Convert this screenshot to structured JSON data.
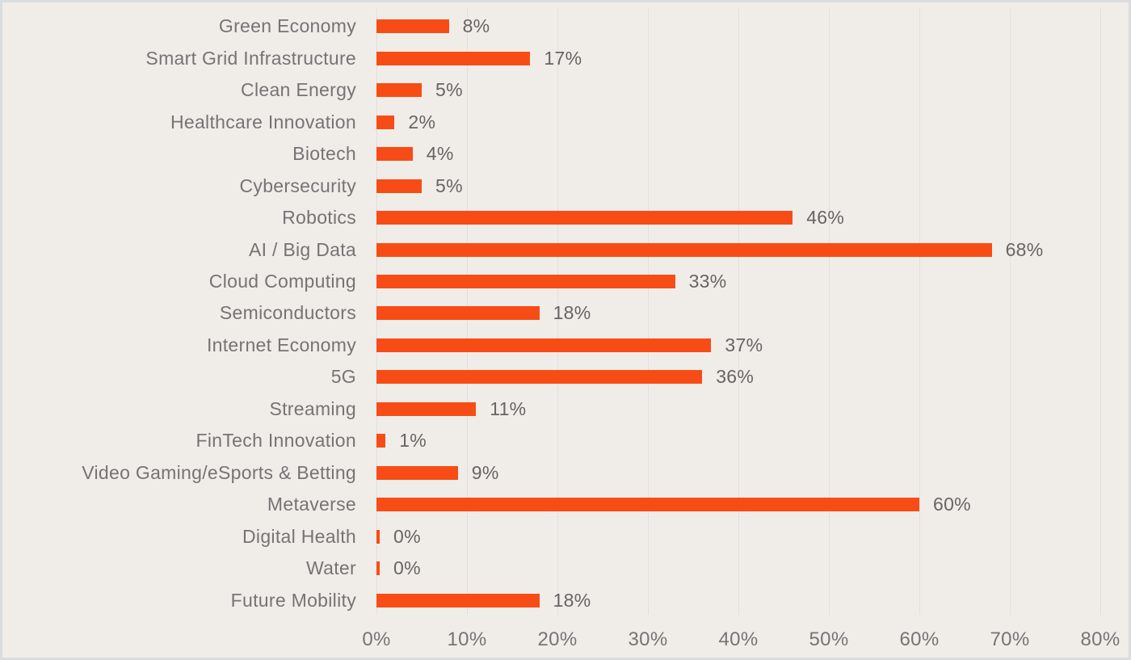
{
  "chart_data": {
    "type": "bar",
    "orientation": "horizontal",
    "title": "",
    "xlabel": "",
    "ylabel": "",
    "categories": [
      "Green Economy",
      "Smart Grid Infrastructure",
      "Clean Energy",
      "Healthcare Innovation",
      "Biotech",
      "Cybersecurity",
      "Robotics",
      "AI / Big Data",
      "Cloud Computing",
      "Semiconductors",
      "Internet Economy",
      "5G",
      "Streaming",
      "FinTech Innovation",
      "Video Gaming/eSports & Betting",
      "Metaverse",
      "Digital Health",
      "Water",
      "Future Mobility"
    ],
    "values": [
      8,
      17,
      5,
      2,
      4,
      5,
      46,
      68,
      33,
      18,
      37,
      36,
      11,
      1,
      9,
      60,
      0,
      0,
      18
    ],
    "value_labels": [
      "8%",
      "17%",
      "5%",
      "2%",
      "4%",
      "5%",
      "46%",
      "68%",
      "33%",
      "18%",
      "37%",
      "36%",
      "11%",
      "1%",
      "9%",
      "60%",
      "0%",
      "0%",
      "18%"
    ],
    "xlim": [
      0,
      80
    ],
    "x_ticks": [
      "0%",
      "10%",
      "20%",
      "30%",
      "40%",
      "50%",
      "60%",
      "70%",
      "80%"
    ],
    "grid": "vertical",
    "legend": "none",
    "colors": {
      "bar": "#f84c16",
      "background": "#f0ede9",
      "gridline": "#e0e0df",
      "category_label": "#757474",
      "value_label": "#666564",
      "axis_label": "#757474",
      "border": "#dadddd"
    }
  }
}
